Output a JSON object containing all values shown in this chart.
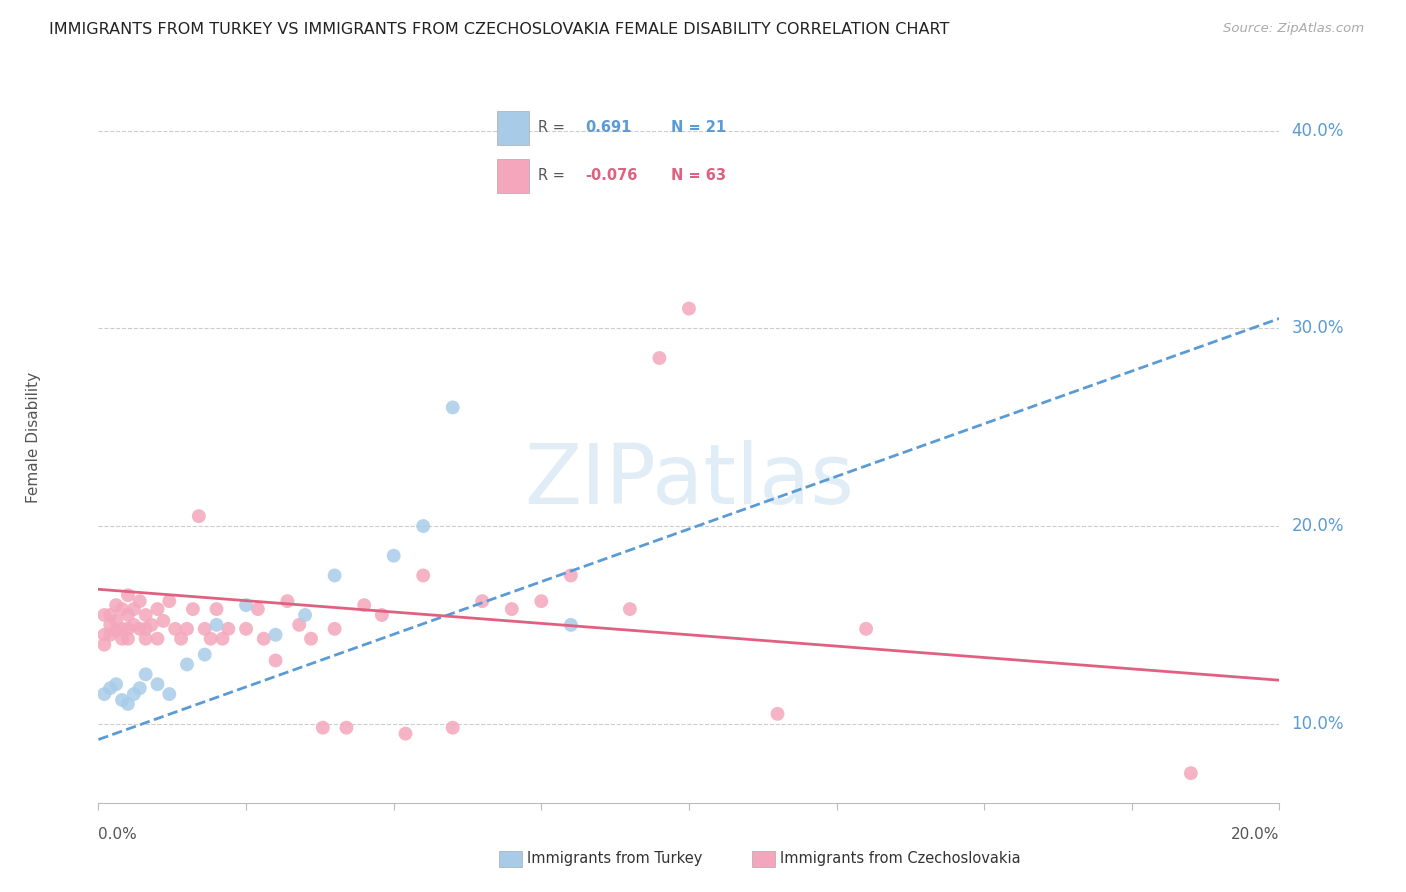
{
  "title": "IMMIGRANTS FROM TURKEY VS IMMIGRANTS FROM CZECHOSLOVAKIA FEMALE DISABILITY CORRELATION CHART",
  "source": "Source: ZipAtlas.com",
  "ylabel": "Female Disability",
  "x_min": 0.0,
  "x_max": 0.2,
  "y_min": 0.06,
  "y_max": 0.43,
  "color_turkey": "#a8cce8",
  "color_turkey_line": "#5b9bd5",
  "color_czech": "#f4a7bc",
  "color_czech_line": "#e06080",
  "watermark": "ZIPatlas",
  "turkey_x": [
    0.001,
    0.002,
    0.003,
    0.004,
    0.005,
    0.006,
    0.007,
    0.008,
    0.01,
    0.012,
    0.015,
    0.018,
    0.02,
    0.025,
    0.03,
    0.035,
    0.04,
    0.05,
    0.055,
    0.06,
    0.08
  ],
  "turkey_y": [
    0.115,
    0.118,
    0.12,
    0.112,
    0.11,
    0.115,
    0.118,
    0.125,
    0.12,
    0.115,
    0.13,
    0.135,
    0.15,
    0.16,
    0.145,
    0.155,
    0.175,
    0.185,
    0.2,
    0.26,
    0.15
  ],
  "czech_x": [
    0.001,
    0.001,
    0.001,
    0.002,
    0.002,
    0.002,
    0.003,
    0.003,
    0.003,
    0.004,
    0.004,
    0.004,
    0.005,
    0.005,
    0.005,
    0.005,
    0.006,
    0.006,
    0.007,
    0.007,
    0.008,
    0.008,
    0.008,
    0.009,
    0.01,
    0.01,
    0.011,
    0.012,
    0.013,
    0.014,
    0.015,
    0.016,
    0.017,
    0.018,
    0.019,
    0.02,
    0.021,
    0.022,
    0.025,
    0.027,
    0.028,
    0.03,
    0.032,
    0.034,
    0.036,
    0.038,
    0.04,
    0.042,
    0.045,
    0.048,
    0.052,
    0.055,
    0.06,
    0.065,
    0.07,
    0.075,
    0.08,
    0.09,
    0.095,
    0.1,
    0.115,
    0.13,
    0.185
  ],
  "czech_y": [
    0.155,
    0.145,
    0.14,
    0.155,
    0.15,
    0.145,
    0.16,
    0.152,
    0.147,
    0.158,
    0.148,
    0.143,
    0.165,
    0.155,
    0.148,
    0.143,
    0.158,
    0.15,
    0.162,
    0.148,
    0.155,
    0.148,
    0.143,
    0.15,
    0.158,
    0.143,
    0.152,
    0.162,
    0.148,
    0.143,
    0.148,
    0.158,
    0.205,
    0.148,
    0.143,
    0.158,
    0.143,
    0.148,
    0.148,
    0.158,
    0.143,
    0.132,
    0.162,
    0.15,
    0.143,
    0.098,
    0.148,
    0.098,
    0.16,
    0.155,
    0.095,
    0.175,
    0.098,
    0.162,
    0.158,
    0.162,
    0.175,
    0.158,
    0.285,
    0.31,
    0.105,
    0.148,
    0.075
  ],
  "turkey_line_x": [
    0.0,
    0.2
  ],
  "turkey_line_y": [
    0.092,
    0.305
  ],
  "czech_line_x": [
    0.0,
    0.2
  ],
  "czech_line_y": [
    0.168,
    0.122
  ]
}
